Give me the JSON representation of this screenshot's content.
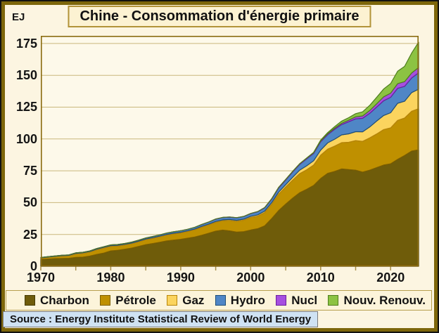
{
  "title": "Chine - Consommation d'énergie primaire",
  "source": "Source : Energy Institute Statistical Review of World Energy",
  "axes": {
    "y_unit": "EJ",
    "yticks": [
      0,
      25,
      50,
      75,
      100,
      125,
      150,
      175
    ],
    "xticks_major": [
      1970,
      1980,
      1990,
      2000,
      2010,
      2020
    ],
    "xticks_minor_step": 5
  },
  "colors": {
    "outer_border": "#111111",
    "gold_border": "#7d660a",
    "background": "#fcf5e1",
    "plot_background": "#fdf9ea",
    "grid": "#c9b77c",
    "frame": "#8a6c10",
    "frame_bottom": "#6f5404",
    "tick": "#a8904a",
    "title_box_bg": "#fcf2d2",
    "title_box_border": "#b29339",
    "legend_bg": "#fcf4da",
    "legend_border": "#b7a04e",
    "source_bg": "#cfe2f3",
    "source_border": "#7a7a7a"
  },
  "chart_data": {
    "type": "area",
    "stacked": true,
    "title": "Chine - Consommation d'énergie primaire",
    "xlabel": "",
    "ylabel": "EJ",
    "ylim": [
      0,
      181
    ],
    "grid": "horizontal",
    "legend_position": "bottom",
    "x": [
      1970,
      1971,
      1972,
      1973,
      1974,
      1975,
      1976,
      1977,
      1978,
      1979,
      1980,
      1981,
      1982,
      1983,
      1984,
      1985,
      1986,
      1987,
      1988,
      1989,
      1990,
      1991,
      1992,
      1993,
      1994,
      1995,
      1996,
      1997,
      1998,
      1999,
      2000,
      2001,
      2002,
      2003,
      2004,
      2005,
      2006,
      2007,
      2008,
      2009,
      2010,
      2011,
      2012,
      2013,
      2014,
      2015,
      2016,
      2017,
      2018,
      2019,
      2020,
      2021,
      2022,
      2023,
      2024
    ],
    "series": [
      {
        "name": "Charbon",
        "color": "#6f5c0a",
        "stroke": "#453a00",
        "values": [
          5.4,
          5.7,
          6.0,
          6.2,
          6.3,
          7.0,
          7.2,
          8.0,
          9.3,
          10.4,
          12.1,
          12.6,
          13.4,
          14.3,
          15.6,
          17.0,
          17.9,
          18.9,
          19.9,
          20.6,
          21.2,
          22.1,
          23.0,
          24.4,
          26.0,
          27.6,
          28.4,
          27.8,
          26.9,
          27.2,
          28.5,
          29.5,
          31.8,
          37.5,
          43.8,
          48.9,
          53.5,
          57.8,
          60.5,
          63.5,
          69.0,
          73.0,
          74.5,
          76.5,
          76.0,
          75.5,
          74.0,
          75.5,
          77.5,
          79.5,
          80.5,
          84.0,
          87.0,
          90.5,
          91.5
        ]
      },
      {
        "name": "Pétrole",
        "color": "#bf9000",
        "stroke": "#7f6000",
        "values": [
          1.2,
          1.4,
          1.6,
          1.9,
          2.0,
          2.8,
          3.0,
          3.2,
          3.7,
          3.9,
          3.6,
          3.4,
          3.4,
          3.5,
          3.7,
          3.9,
          4.1,
          4.3,
          4.6,
          4.8,
          4.9,
          5.2,
          5.7,
          6.3,
          6.5,
          6.9,
          7.4,
          8.2,
          8.4,
          9.0,
          9.8,
          9.9,
          10.4,
          11.2,
          12.9,
          13.4,
          14.2,
          15.0,
          15.3,
          16.0,
          18.3,
          19.0,
          19.9,
          20.6,
          21.4,
          23.2,
          24.1,
          25.3,
          26.4,
          27.9,
          28.2,
          30.6,
          29.5,
          31.3,
          32.3
        ]
      },
      {
        "name": "Gaz",
        "color": "#fbd45e",
        "stroke": "#b8860b",
        "values": [
          0.1,
          0.15,
          0.2,
          0.25,
          0.3,
          0.35,
          0.4,
          0.45,
          0.5,
          0.55,
          0.55,
          0.5,
          0.45,
          0.45,
          0.45,
          0.5,
          0.5,
          0.5,
          0.55,
          0.6,
          0.6,
          0.6,
          0.6,
          0.65,
          0.65,
          0.7,
          0.7,
          0.75,
          0.8,
          0.85,
          0.95,
          1.0,
          1.1,
          1.3,
          1.5,
          1.8,
          2.2,
          2.7,
          3.1,
          3.4,
          3.9,
          4.9,
          5.4,
          6.1,
          6.6,
          7.0,
          7.5,
          8.6,
          10.1,
          11.0,
          11.9,
          13.4,
          13.1,
          14.6,
          15.3
        ]
      },
      {
        "name": "Hydro",
        "color": "#4f86c6",
        "stroke": "#1f4e79",
        "values": [
          0.2,
          0.25,
          0.25,
          0.3,
          0.35,
          0.4,
          0.4,
          0.4,
          0.45,
          0.5,
          0.55,
          0.6,
          0.65,
          0.75,
          0.8,
          0.85,
          0.9,
          0.95,
          1.05,
          1.1,
          1.2,
          1.2,
          1.25,
          1.4,
          1.55,
          1.8,
          1.8,
          1.85,
          1.95,
          2.0,
          2.1,
          2.4,
          2.6,
          2.7,
          3.3,
          3.6,
          4.1,
          4.4,
          5.4,
          5.7,
          6.6,
          6.4,
          7.8,
          8.1,
          9.5,
          10.1,
          10.6,
          10.7,
          11.0,
          11.6,
          12.1,
          11.8,
          11.7,
          11.5,
          12.9
        ]
      },
      {
        "name": "Nucl",
        "color": "#a64fe0",
        "stroke": "#6a1f9e",
        "values": [
          0,
          0,
          0,
          0,
          0,
          0,
          0,
          0,
          0,
          0,
          0,
          0,
          0,
          0,
          0,
          0,
          0,
          0,
          0,
          0,
          0,
          0,
          0,
          0.14,
          0.13,
          0.12,
          0.13,
          0.13,
          0.13,
          0.14,
          0.15,
          0.16,
          0.23,
          0.4,
          0.46,
          0.48,
          0.5,
          0.57,
          0.62,
          0.63,
          0.66,
          0.78,
          0.88,
          1.0,
          1.2,
          1.55,
          1.9,
          2.2,
          2.6,
          3.1,
          3.25,
          3.6,
          3.7,
          3.9,
          4.1
        ]
      },
      {
        "name": "Nouv. Renouv.",
        "color": "#8cc343",
        "stroke": "#4e7d1e",
        "values": [
          0,
          0,
          0,
          0,
          0,
          0,
          0,
          0,
          0,
          0,
          0,
          0,
          0,
          0,
          0,
          0,
          0,
          0,
          0,
          0,
          0,
          0,
          0,
          0,
          0,
          0,
          0,
          0,
          0,
          0,
          0.02,
          0.02,
          0.03,
          0.03,
          0.04,
          0.06,
          0.08,
          0.1,
          0.15,
          0.3,
          0.66,
          0.9,
          1.2,
          1.7,
          2.0,
          2.5,
          3.2,
          4.0,
          5.0,
          6.1,
          7.5,
          9.8,
          12.0,
          15.6,
          19.9
        ]
      }
    ]
  }
}
